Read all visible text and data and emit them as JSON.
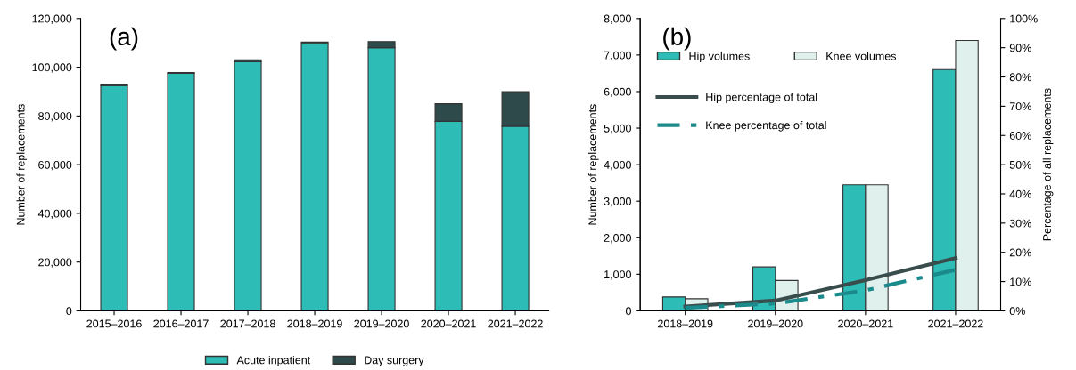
{
  "chart_data": [
    {
      "type": "bar",
      "stacked": true,
      "annotations": [
        "(a)"
      ],
      "ylabel": "Number of replacements",
      "categories": [
        "2015–2016",
        "2016–2017",
        "2017–2018",
        "2018–2019",
        "2019–2020",
        "2020–2021",
        "2021–2022"
      ],
      "series": [
        {
          "name": "Acute inpatient",
          "color": "#2dbdb6",
          "values": [
            92500,
            97500,
            102200,
            109500,
            108000,
            77800,
            75800
          ]
        },
        {
          "name": "Day surgery",
          "color": "#2e4a4a",
          "values": [
            500,
            300,
            800,
            800,
            2500,
            7200,
            14200
          ]
        }
      ],
      "ylim": [
        0,
        120000
      ],
      "yticks": [
        0,
        {
          "value": 20000,
          "label": "20,000"
        },
        {
          "value": 40000,
          "label": "40,000"
        },
        {
          "value": 60000,
          "label": "60,000"
        },
        {
          "value": 80000,
          "label": "80,000"
        },
        {
          "value": 100000,
          "label": "100,000"
        },
        {
          "value": 120000,
          "label": "120,000"
        }
      ],
      "grid": false,
      "legend": "bottom"
    },
    {
      "type": "bar",
      "annotations": [
        "(b)"
      ],
      "ylabel": "Number of replacements",
      "y2label": "Percentage of all replacements",
      "categories": [
        "2018–2019",
        "2019–2020",
        "2020–2021",
        "2021–2022"
      ],
      "series": [
        {
          "name": "Hip volumes",
          "color": "#2dbdb6",
          "values": [
            380,
            1200,
            3450,
            6600
          ]
        },
        {
          "name": "Knee volumes",
          "color": "#dff0ed",
          "values": [
            330,
            830,
            3450,
            7400
          ]
        },
        {
          "name": "Hip percentage of total",
          "type": "line",
          "axis": "y2",
          "color": "#3a4d4d",
          "line_style": "solid",
          "values": [
            1.5,
            3.5,
            10.5,
            18
          ]
        },
        {
          "name": "Knee percentage of total",
          "type": "line",
          "axis": "y2",
          "color": "#1b8a8c",
          "line_style": "dashed",
          "values": [
            1,
            2.5,
            7,
            14
          ]
        }
      ],
      "ylim": [
        0,
        8000
      ],
      "yticks": [
        0,
        {
          "value": 1000,
          "label": "1,000"
        },
        {
          "value": 2000,
          "label": "2,000"
        },
        {
          "value": 3000,
          "label": "3,000"
        },
        {
          "value": 4000,
          "label": "4,000"
        },
        {
          "value": 5000,
          "label": "5,000"
        },
        {
          "value": 6000,
          "label": "6,000"
        },
        {
          "value": 7000,
          "label": "7,000"
        },
        {
          "value": 8000,
          "label": "8,000"
        }
      ],
      "y2lim": [
        0,
        100
      ],
      "y2ticks": [
        {
          "value": 0,
          "label": "0%"
        },
        {
          "value": 10,
          "label": "10%"
        },
        {
          "value": 20,
          "label": "20%"
        },
        {
          "value": 30,
          "label": "30%"
        },
        {
          "value": 40,
          "label": "40%"
        },
        {
          "value": 50,
          "label": "50%"
        },
        {
          "value": 60,
          "label": "60%"
        },
        {
          "value": 70,
          "label": "70%"
        },
        {
          "value": 80,
          "label": "80%"
        },
        {
          "value": 90,
          "label": "90%"
        },
        {
          "value": 100,
          "label": "100%"
        }
      ],
      "grid": false,
      "legend": "top left"
    }
  ]
}
